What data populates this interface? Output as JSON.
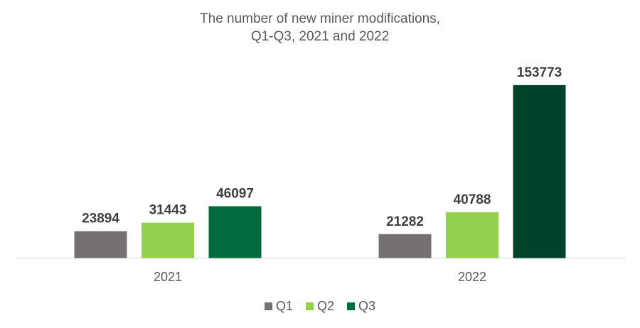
{
  "chart_data": {
    "type": "bar",
    "title_lines": [
      "The number of new miner modifications,",
      "Q1-Q3, 2021 and 2022"
    ],
    "categories": [
      "2021",
      "2022"
    ],
    "series": [
      {
        "name": "Q1",
        "color": "#767171",
        "values": [
          23894,
          21282
        ]
      },
      {
        "name": "Q2",
        "color": "#92d050",
        "values": [
          31443,
          40788
        ]
      },
      {
        "name": "Q3",
        "color": "#006b3c",
        "values": [
          46097,
          153773
        ]
      }
    ],
    "bar_colors_override": {
      "2022-Q3": "#00432a"
    },
    "xlabel": "",
    "ylabel": "",
    "ylim": [
      0,
      160000
    ],
    "grid": false,
    "legend_position": "bottom",
    "data_labels": true
  }
}
